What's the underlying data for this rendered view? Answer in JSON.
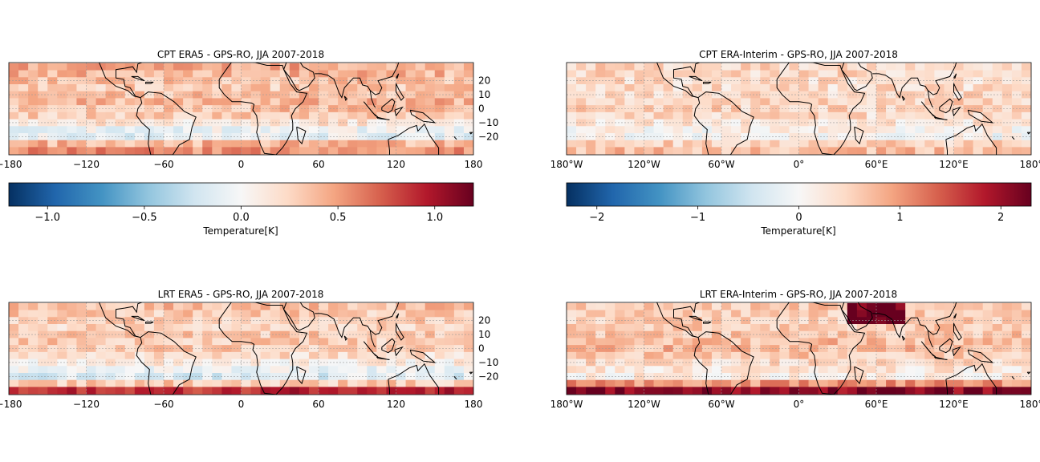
{
  "figure": {
    "colorbar_label": "Temperature[K]",
    "lon_ticks_numeric": [
      "−180",
      "−120",
      "−60",
      "0",
      "60",
      "120",
      "180"
    ],
    "lon_ticks_degree": [
      "180°W",
      "120°W",
      "60°W",
      "0°",
      "60°E",
      "120°E",
      "180°"
    ],
    "lat_ticks": [
      "20",
      "10",
      "0",
      "−10",
      "−20"
    ],
    "colormap": {
      "name": "RdBu_r",
      "stops": [
        "#053061",
        "#2166ac",
        "#4393c3",
        "#92c5de",
        "#d1e5f0",
        "#f7f7f7",
        "#fddbc7",
        "#f4a582",
        "#d6604d",
        "#b2182b",
        "#67001f"
      ]
    },
    "colorbars": [
      {
        "ticks": [
          "−1.0",
          "−0.5",
          "0.0",
          "0.5",
          "1.0"
        ],
        "tick_values": [
          -1.0,
          -0.5,
          0.0,
          0.5,
          1.0
        ],
        "range": [
          -1.2,
          1.2
        ]
      },
      {
        "ticks": [
          "−2",
          "−1",
          "0",
          "1",
          "2"
        ],
        "tick_values": [
          -2,
          -1,
          0,
          1,
          2
        ],
        "range": [
          -2.3,
          2.3
        ]
      }
    ]
  },
  "chart_data": [
    {
      "type": "heatmap",
      "title": "CPT ERA5 - GPS-RO, JJA 2007-2018",
      "xlim": [
        -180,
        180
      ],
      "ylim": [
        -33,
        33
      ],
      "lon_tick_style": "numeric",
      "show_lat_labels": true,
      "colorbar": 0,
      "zonal_profile": [
        {
          "lat": 30,
          "value": 0.45
        },
        {
          "lat": 25,
          "value": 0.4
        },
        {
          "lat": 20,
          "value": 0.35
        },
        {
          "lat": 15,
          "value": 0.3
        },
        {
          "lat": 10,
          "value": 0.35
        },
        {
          "lat": 5,
          "value": 0.4
        },
        {
          "lat": 0,
          "value": 0.35
        },
        {
          "lat": -5,
          "value": 0.3
        },
        {
          "lat": -10,
          "value": 0.15
        },
        {
          "lat": -15,
          "value": -0.05
        },
        {
          "lat": -20,
          "value": -0.1
        },
        {
          "lat": -25,
          "value": 0.4
        },
        {
          "lat": -30,
          "value": 0.55
        }
      ]
    },
    {
      "type": "heatmap",
      "title": "CPT ERA-Interim - GPS-RO, JJA 2007-2018",
      "xlim": [
        -180,
        180
      ],
      "ylim": [
        -33,
        33
      ],
      "lon_tick_style": "degree",
      "show_lat_labels": false,
      "colorbar": 1,
      "zonal_profile": [
        {
          "lat": 30,
          "value": 0.5
        },
        {
          "lat": 25,
          "value": 0.45
        },
        {
          "lat": 20,
          "value": 0.4
        },
        {
          "lat": 15,
          "value": 0.4
        },
        {
          "lat": 10,
          "value": 0.45
        },
        {
          "lat": 5,
          "value": 0.5
        },
        {
          "lat": 0,
          "value": 0.5
        },
        {
          "lat": -5,
          "value": 0.4
        },
        {
          "lat": -10,
          "value": 0.25
        },
        {
          "lat": -15,
          "value": 0.1
        },
        {
          "lat": -20,
          "value": 0.0
        },
        {
          "lat": -25,
          "value": 0.5
        },
        {
          "lat": -30,
          "value": 0.7
        }
      ]
    },
    {
      "type": "heatmap",
      "title": "LRT ERA5 - GPS-RO, JJA 2007-2018",
      "xlim": [
        -180,
        180
      ],
      "ylim": [
        -33,
        33
      ],
      "lon_tick_style": "numeric",
      "show_lat_labels": true,
      "colorbar": 0,
      "zonal_profile": [
        {
          "lat": 30,
          "value": 0.35
        },
        {
          "lat": 25,
          "value": 0.3
        },
        {
          "lat": 20,
          "value": 0.3
        },
        {
          "lat": 15,
          "value": 0.25
        },
        {
          "lat": 10,
          "value": 0.3
        },
        {
          "lat": 5,
          "value": 0.3
        },
        {
          "lat": 0,
          "value": 0.3
        },
        {
          "lat": -5,
          "value": 0.2
        },
        {
          "lat": -10,
          "value": 0.1
        },
        {
          "lat": -15,
          "value": -0.05
        },
        {
          "lat": -20,
          "value": -0.15
        },
        {
          "lat": -25,
          "value": 0.3
        },
        {
          "lat": -30,
          "value": 0.9
        }
      ]
    },
    {
      "type": "heatmap",
      "title": "LRT ERA-Interim - GPS-RO, JJA 2007-2018",
      "xlim": [
        -180,
        180
      ],
      "ylim": [
        -33,
        33
      ],
      "lon_tick_style": "degree",
      "show_lat_labels": false,
      "colorbar": 1,
      "zonal_profile": [
        {
          "lat": 30,
          "value": 0.6
        },
        {
          "lat": 25,
          "value": 0.55
        },
        {
          "lat": 20,
          "value": 0.55
        },
        {
          "lat": 15,
          "value": 0.55
        },
        {
          "lat": 10,
          "value": 0.6
        },
        {
          "lat": 5,
          "value": 0.7
        },
        {
          "lat": 0,
          "value": 0.75
        },
        {
          "lat": -5,
          "value": 0.6
        },
        {
          "lat": -10,
          "value": 0.4
        },
        {
          "lat": -15,
          "value": 0.25
        },
        {
          "lat": -20,
          "value": 0.2
        },
        {
          "lat": -25,
          "value": 1.0
        },
        {
          "lat": -30,
          "value": 2.1
        }
      ]
    }
  ]
}
